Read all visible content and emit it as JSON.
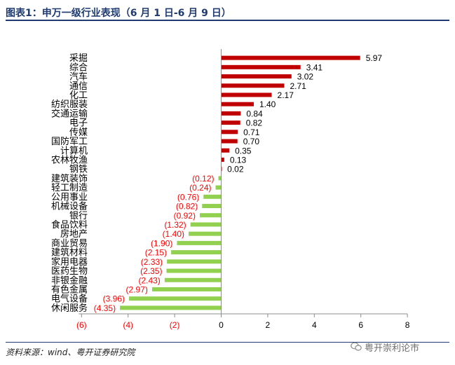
{
  "header": {
    "title": "图表1：申万一级行业表现（6 月 1 日-6 月 9 日）"
  },
  "footer": {
    "source": "资料来源：wind、粤开证券研究院",
    "watermark": "粤开崇利论市"
  },
  "colors": {
    "positive": "#c00000",
    "negative": "#92d050",
    "negative_label": "#ff0000",
    "frame": "#1f3b70"
  },
  "chart_data": {
    "type": "bar",
    "orientation": "horizontal",
    "categories": [
      "采掘",
      "综合",
      "汽车",
      "通信",
      "化工",
      "纺织服装",
      "交通运输",
      "电子",
      "传媒",
      "国防军工",
      "计算机",
      "农林牧渔",
      "钢铁",
      "建筑装饰",
      "轻工制造",
      "公用事业",
      "机械设备",
      "银行",
      "食品饮料",
      "房地产",
      "商业贸易",
      "建筑材料",
      "家用电器",
      "医药生物",
      "非银金融",
      "有色金属",
      "电气设备",
      "休闲服务"
    ],
    "values": [
      5.97,
      3.41,
      3.02,
      2.71,
      2.17,
      1.4,
      0.84,
      0.82,
      0.71,
      0.7,
      0.35,
      0.13,
      0.02,
      -0.12,
      -0.24,
      -0.76,
      -0.82,
      -0.92,
      -1.32,
      -1.4,
      -1.9,
      -2.15,
      -2.33,
      -2.35,
      -2.43,
      -2.97,
      -3.96,
      -4.35
    ],
    "value_labels": [
      "5.97",
      "3.41",
      "3.02",
      "2.71",
      "2.17",
      "1.40",
      "0.84",
      "0.82",
      "0.71",
      "0.70",
      "0.35",
      "0.13",
      "0.02",
      "(0.12)",
      "(0.24)",
      "(0.76)",
      "(0.82)",
      "(0.92)",
      "(1.32)",
      "(1.40)",
      "(1.90)",
      "(2.15)",
      "(2.33)",
      "(2.35)",
      "(2.43)",
      "(2.97)",
      "(3.96)",
      "(4.35)"
    ],
    "xlim": [
      -6,
      8
    ],
    "xticks": [
      -6,
      -4,
      -2,
      0,
      2,
      4,
      6,
      8
    ],
    "xtick_labels": [
      "(6)",
      "(4)",
      "(2)",
      "0",
      "2",
      "4",
      "6",
      "8"
    ],
    "grid": false,
    "legend": "none"
  }
}
